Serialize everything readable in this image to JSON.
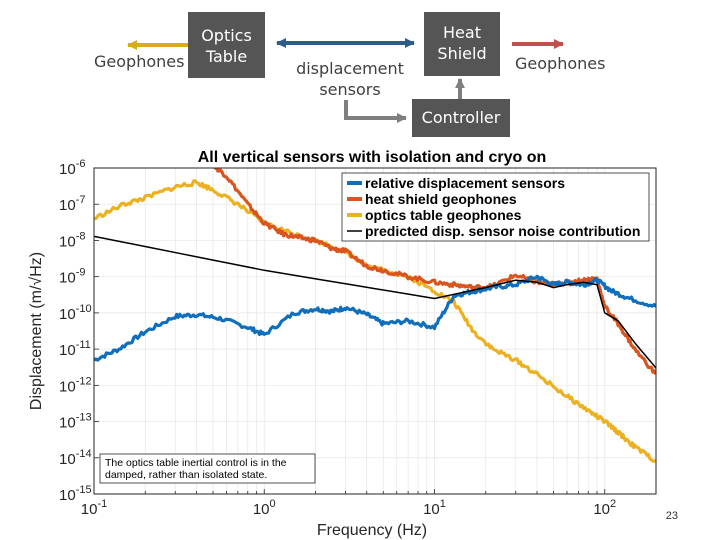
{
  "diagram": {
    "geophones_left": "Geophones",
    "optics_table_line1": "Optics",
    "optics_table_line2": "Table",
    "displacement_line1": "displacement",
    "displacement_line2": "sensors",
    "heat_shield_line1": "Heat",
    "heat_shield_line2": "Shield",
    "geophones_right": "Geophones",
    "controller": "Controller",
    "colors": {
      "box": "#555555",
      "arrow_left": "#d9ac1c",
      "arrow_mid": "#2e5c8a",
      "arrow_right": "#c0504d",
      "arrow_grey": "#7f7f7f"
    }
  },
  "chart_data": {
    "type": "line",
    "title": "All vertical sensors with isolation and cryo on",
    "xlabel": "Frequency (Hz)",
    "ylabel": "Displacement (m/√Hz)",
    "xscale": "log",
    "yscale": "log",
    "xlim": [
      0.1,
      200
    ],
    "ylim": [
      1e-15,
      1e-06
    ],
    "xticks": [
      {
        "base": "10",
        "exp": "-1"
      },
      {
        "base": "10",
        "exp": "0"
      },
      {
        "base": "10",
        "exp": "1"
      },
      {
        "base": "10",
        "exp": "2"
      }
    ],
    "yticks": [
      {
        "base": "10",
        "exp": "-15"
      },
      {
        "base": "10",
        "exp": "-14"
      },
      {
        "base": "10",
        "exp": "-13"
      },
      {
        "base": "10",
        "exp": "-12"
      },
      {
        "base": "10",
        "exp": "-11"
      },
      {
        "base": "10",
        "exp": "-10"
      },
      {
        "base": "10",
        "exp": "-9"
      },
      {
        "base": "10",
        "exp": "-8"
      },
      {
        "base": "10",
        "exp": "-7"
      },
      {
        "base": "10",
        "exp": "-6"
      }
    ],
    "grid": true,
    "legend_position": "top-right",
    "annotation": [
      "The optics table inertial control is in the",
      "damped, rather than isolated state."
    ],
    "series": [
      {
        "name": "relative displacement sensors",
        "color": "#0f6fbd",
        "x": [
          0.1,
          0.14,
          0.2,
          0.3,
          0.4,
          0.55,
          0.8,
          1.0,
          1.5,
          2.0,
          2.5,
          3.0,
          4.0,
          5.0,
          7.0,
          10.0,
          13.0,
          17.0,
          22.0,
          30.0,
          40.0,
          50.0,
          60.0,
          75.0,
          90.0,
          110.0,
          140.0,
          200.0
        ],
        "y": [
          5e-12,
          1e-11,
          3e-11,
          8e-11,
          9e-11,
          7e-11,
          4e-11,
          2.5e-11,
          1e-10,
          1.3e-10,
          1.1e-10,
          1.4e-10,
          9e-11,
          5e-11,
          6e-11,
          4e-11,
          3e-10,
          4e-10,
          5e-10,
          6e-10,
          1e-09,
          6e-10,
          7e-10,
          6e-10,
          8e-10,
          4e-10,
          2.5e-10,
          1.5e-10
        ]
      },
      {
        "name": "heat shield geophones",
        "color": "#d9541e",
        "x": [
          0.4,
          0.5,
          0.6,
          0.8,
          1.0,
          1.3,
          1.6,
          2.0,
          2.5,
          3.0,
          4.0,
          5.0,
          7.0,
          10.0,
          13.0,
          17.0,
          22.0,
          30.0,
          40.0,
          50.0,
          60.0,
          75.0,
          90.0,
          100.0,
          120.0,
          150.0,
          200.0
        ],
        "y": [
          2e-06,
          1.2e-06,
          6e-07,
          1e-07,
          3e-08,
          1.5e-08,
          1.2e-08,
          1e-08,
          6e-09,
          5e-09,
          2e-09,
          1.5e-09,
          1e-09,
          7e-10,
          6e-10,
          5e-10,
          5.5e-10,
          1.1e-09,
          7e-10,
          6e-10,
          7e-10,
          8e-10,
          9e-10,
          1.5e-10,
          5e-11,
          1e-11,
          2e-12
        ]
      },
      {
        "name": "optics table geophones",
        "color": "#edb120",
        "x": [
          0.1,
          0.15,
          0.2,
          0.3,
          0.4,
          0.5,
          0.7,
          1.0,
          1.5,
          2.0,
          3.0,
          4.0,
          5.0,
          7.0,
          10.0,
          13.0,
          17.0,
          22.0,
          30.0,
          40.0,
          60.0,
          80.0,
          100.0,
          120.0,
          150.0,
          200.0
        ],
        "y": [
          4e-08,
          1e-07,
          1.5e-07,
          3e-07,
          4e-07,
          2.5e-07,
          1e-07,
          3e-08,
          1.5e-08,
          1e-08,
          5e-09,
          2e-09,
          1.5e-09,
          1e-09,
          4e-10,
          2e-10,
          3e-11,
          1e-11,
          5e-12,
          2e-12,
          5e-13,
          2e-13,
          1e-13,
          5e-14,
          2e-14,
          8e-15
        ]
      },
      {
        "name": "predicted disp. sensor noise contribution",
        "color": "#000000",
        "x": [
          0.1,
          1.0,
          10.0,
          20.0,
          30.0,
          40.0,
          50.0,
          60.0,
          75.0,
          90.0,
          100.0,
          120.0,
          150.0,
          200.0
        ],
        "y": [
          1.3e-08,
          1.5e-09,
          2.5e-10,
          5e-10,
          8e-10,
          7e-10,
          5e-10,
          6e-10,
          7e-10,
          6e-10,
          1e-10,
          6e-11,
          1.5e-11,
          3e-12
        ]
      }
    ]
  },
  "slide_number": "23"
}
